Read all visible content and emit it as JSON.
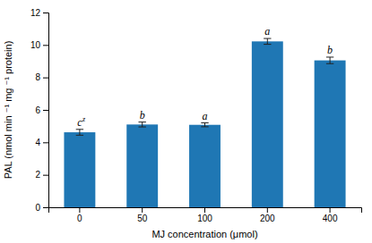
{
  "chart_data": {
    "type": "bar",
    "xlabel": "MJ concentration (μmol)",
    "ylabel": "PAL (nmol min ⁻¹ mg ⁻¹ protein)",
    "categories": [
      "0",
      "50",
      "100",
      "200",
      "400"
    ],
    "values": [
      4.62,
      5.1,
      5.08,
      10.22,
      9.05
    ],
    "errors": [
      0.18,
      0.15,
      0.12,
      0.18,
      0.2
    ],
    "annotations": [
      {
        "text": "c",
        "superscript": "z"
      },
      {
        "text": "b"
      },
      {
        "text": "a"
      },
      {
        "text": "a"
      },
      {
        "text": "b"
      }
    ],
    "ylim": [
      0,
      12
    ],
    "yticks": [
      0,
      2,
      4,
      6,
      8,
      10,
      12
    ]
  }
}
